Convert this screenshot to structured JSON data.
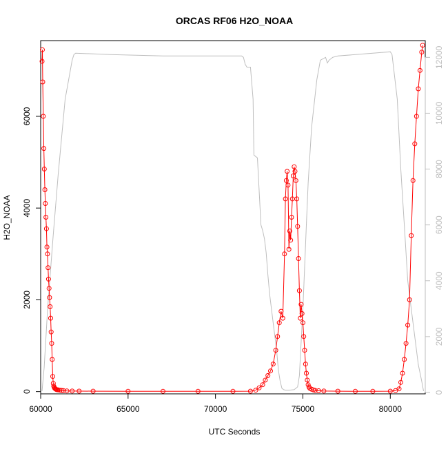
{
  "chart_data": {
    "type": "line",
    "title": "ORCAS RF06 H2O_NOAA",
    "xlabel": "UTC Seconds",
    "ylabel": "H2O_NOAA",
    "xlim": [
      60000,
      82000
    ],
    "ylim": [
      -50,
      7650
    ],
    "y2lim": [
      -50,
      12600
    ],
    "x_ticks": [
      60000,
      65000,
      70000,
      75000,
      80000
    ],
    "y_ticks": [
      0,
      2000,
      4000,
      6000
    ],
    "y2_ticks": [
      0,
      2000,
      4000,
      6000,
      8000,
      10000,
      12000
    ],
    "colors": {
      "primary": "#ff0000",
      "secondary": "#bebebe",
      "axis": "#000000"
    },
    "series": [
      {
        "axis": "left",
        "style": "line+circles",
        "x": [
          60080,
          60100,
          60120,
          60150,
          60180,
          60210,
          60240,
          60270,
          60300,
          60330,
          60360,
          60390,
          60420,
          60450,
          60480,
          60510,
          60540,
          60570,
          60600,
          60630,
          60660,
          60690,
          60720,
          60750,
          60780,
          60810,
          60840,
          60870,
          60900,
          60950,
          61000,
          61100,
          61200,
          61300,
          61500,
          61800,
          62200,
          63000,
          65000,
          67000,
          69000,
          71000,
          72000,
          72300,
          72500,
          72700,
          72850,
          73000,
          73150,
          73300,
          73450,
          73550,
          73650,
          73750,
          73850,
          73950,
          74000,
          74050,
          74100,
          74150,
          74200,
          74250,
          74300,
          74350,
          74400,
          74450,
          74500,
          74550,
          74600,
          74650,
          74700,
          74750,
          74800,
          74850,
          74900,
          74950,
          75000,
          75050,
          75100,
          75150,
          75200,
          75250,
          75300,
          75350,
          75400,
          75500,
          75600,
          75700,
          75900,
          76200,
          77000,
          78000,
          79000,
          80000,
          80300,
          80500,
          80600,
          80700,
          80800,
          80900,
          81000,
          81100,
          81200,
          81300,
          81400,
          81500,
          81600,
          81700,
          81800,
          81850
        ],
        "values": [
          7200,
          7450,
          6750,
          6000,
          5300,
          4850,
          4400,
          4100,
          3800,
          3550,
          3150,
          3000,
          2700,
          2450,
          2250,
          2050,
          1850,
          1600,
          1300,
          1050,
          700,
          330,
          180,
          120,
          90,
          70,
          60,
          50,
          45,
          40,
          35,
          30,
          25,
          20,
          15,
          12,
          10,
          8,
          7,
          6,
          5,
          5,
          8,
          30,
          80,
          150,
          250,
          350,
          450,
          600,
          900,
          1200,
          1500,
          1750,
          1600,
          3000,
          4200,
          4600,
          4800,
          4500,
          3100,
          3500,
          3300,
          3800,
          4200,
          4700,
          4900,
          4800,
          4600,
          4200,
          3600,
          2900,
          2200,
          1600,
          1900,
          1700,
          1500,
          1200,
          900,
          600,
          400,
          250,
          150,
          100,
          70,
          50,
          35,
          25,
          18,
          12,
          8,
          6,
          6,
          8,
          20,
          60,
          200,
          400,
          700,
          1050,
          1450,
          2000,
          3400,
          4600,
          5400,
          6000,
          6600,
          7000,
          7400,
          7550
        ]
      },
      {
        "axis": "right",
        "style": "line",
        "x": [
          60080,
          60200,
          60400,
          60700,
          61000,
          61400,
          61800,
          61900,
          62000,
          64000,
          67000,
          70000,
          71500,
          71600,
          71700,
          71800,
          71900,
          72000,
          72150,
          72200,
          72400,
          72600,
          72700,
          72800,
          72900,
          73000,
          73100,
          73300,
          73500,
          73600,
          73700,
          73800,
          73900,
          74000,
          74200,
          74500,
          74700,
          74800,
          74900,
          75000,
          75100,
          75200,
          75300,
          75500,
          75800,
          76000,
          76300,
          76400,
          76500,
          76700,
          77000,
          78000,
          79000,
          80000,
          80100,
          80400,
          80600,
          80800,
          81000,
          81300,
          81600,
          81800,
          81900
        ],
        "values": [
          50,
          900,
          3000,
          5500,
          7800,
          10500,
          11900,
          12100,
          12150,
          12100,
          12050,
          12050,
          12050,
          12000,
          11750,
          11650,
          11650,
          11650,
          10500,
          8500,
          8400,
          6000,
          5800,
          5500,
          5000,
          4200,
          3500,
          2500,
          1500,
          800,
          400,
          150,
          100,
          80,
          80,
          100,
          200,
          600,
          1800,
          3000,
          4500,
          6000,
          7500,
          9500,
          11200,
          11900,
          12000,
          11800,
          11900,
          12000,
          12050,
          12100,
          12150,
          12200,
          12100,
          10500,
          8000,
          6000,
          4000,
          2500,
          1000,
          400,
          50
        ]
      }
    ]
  }
}
